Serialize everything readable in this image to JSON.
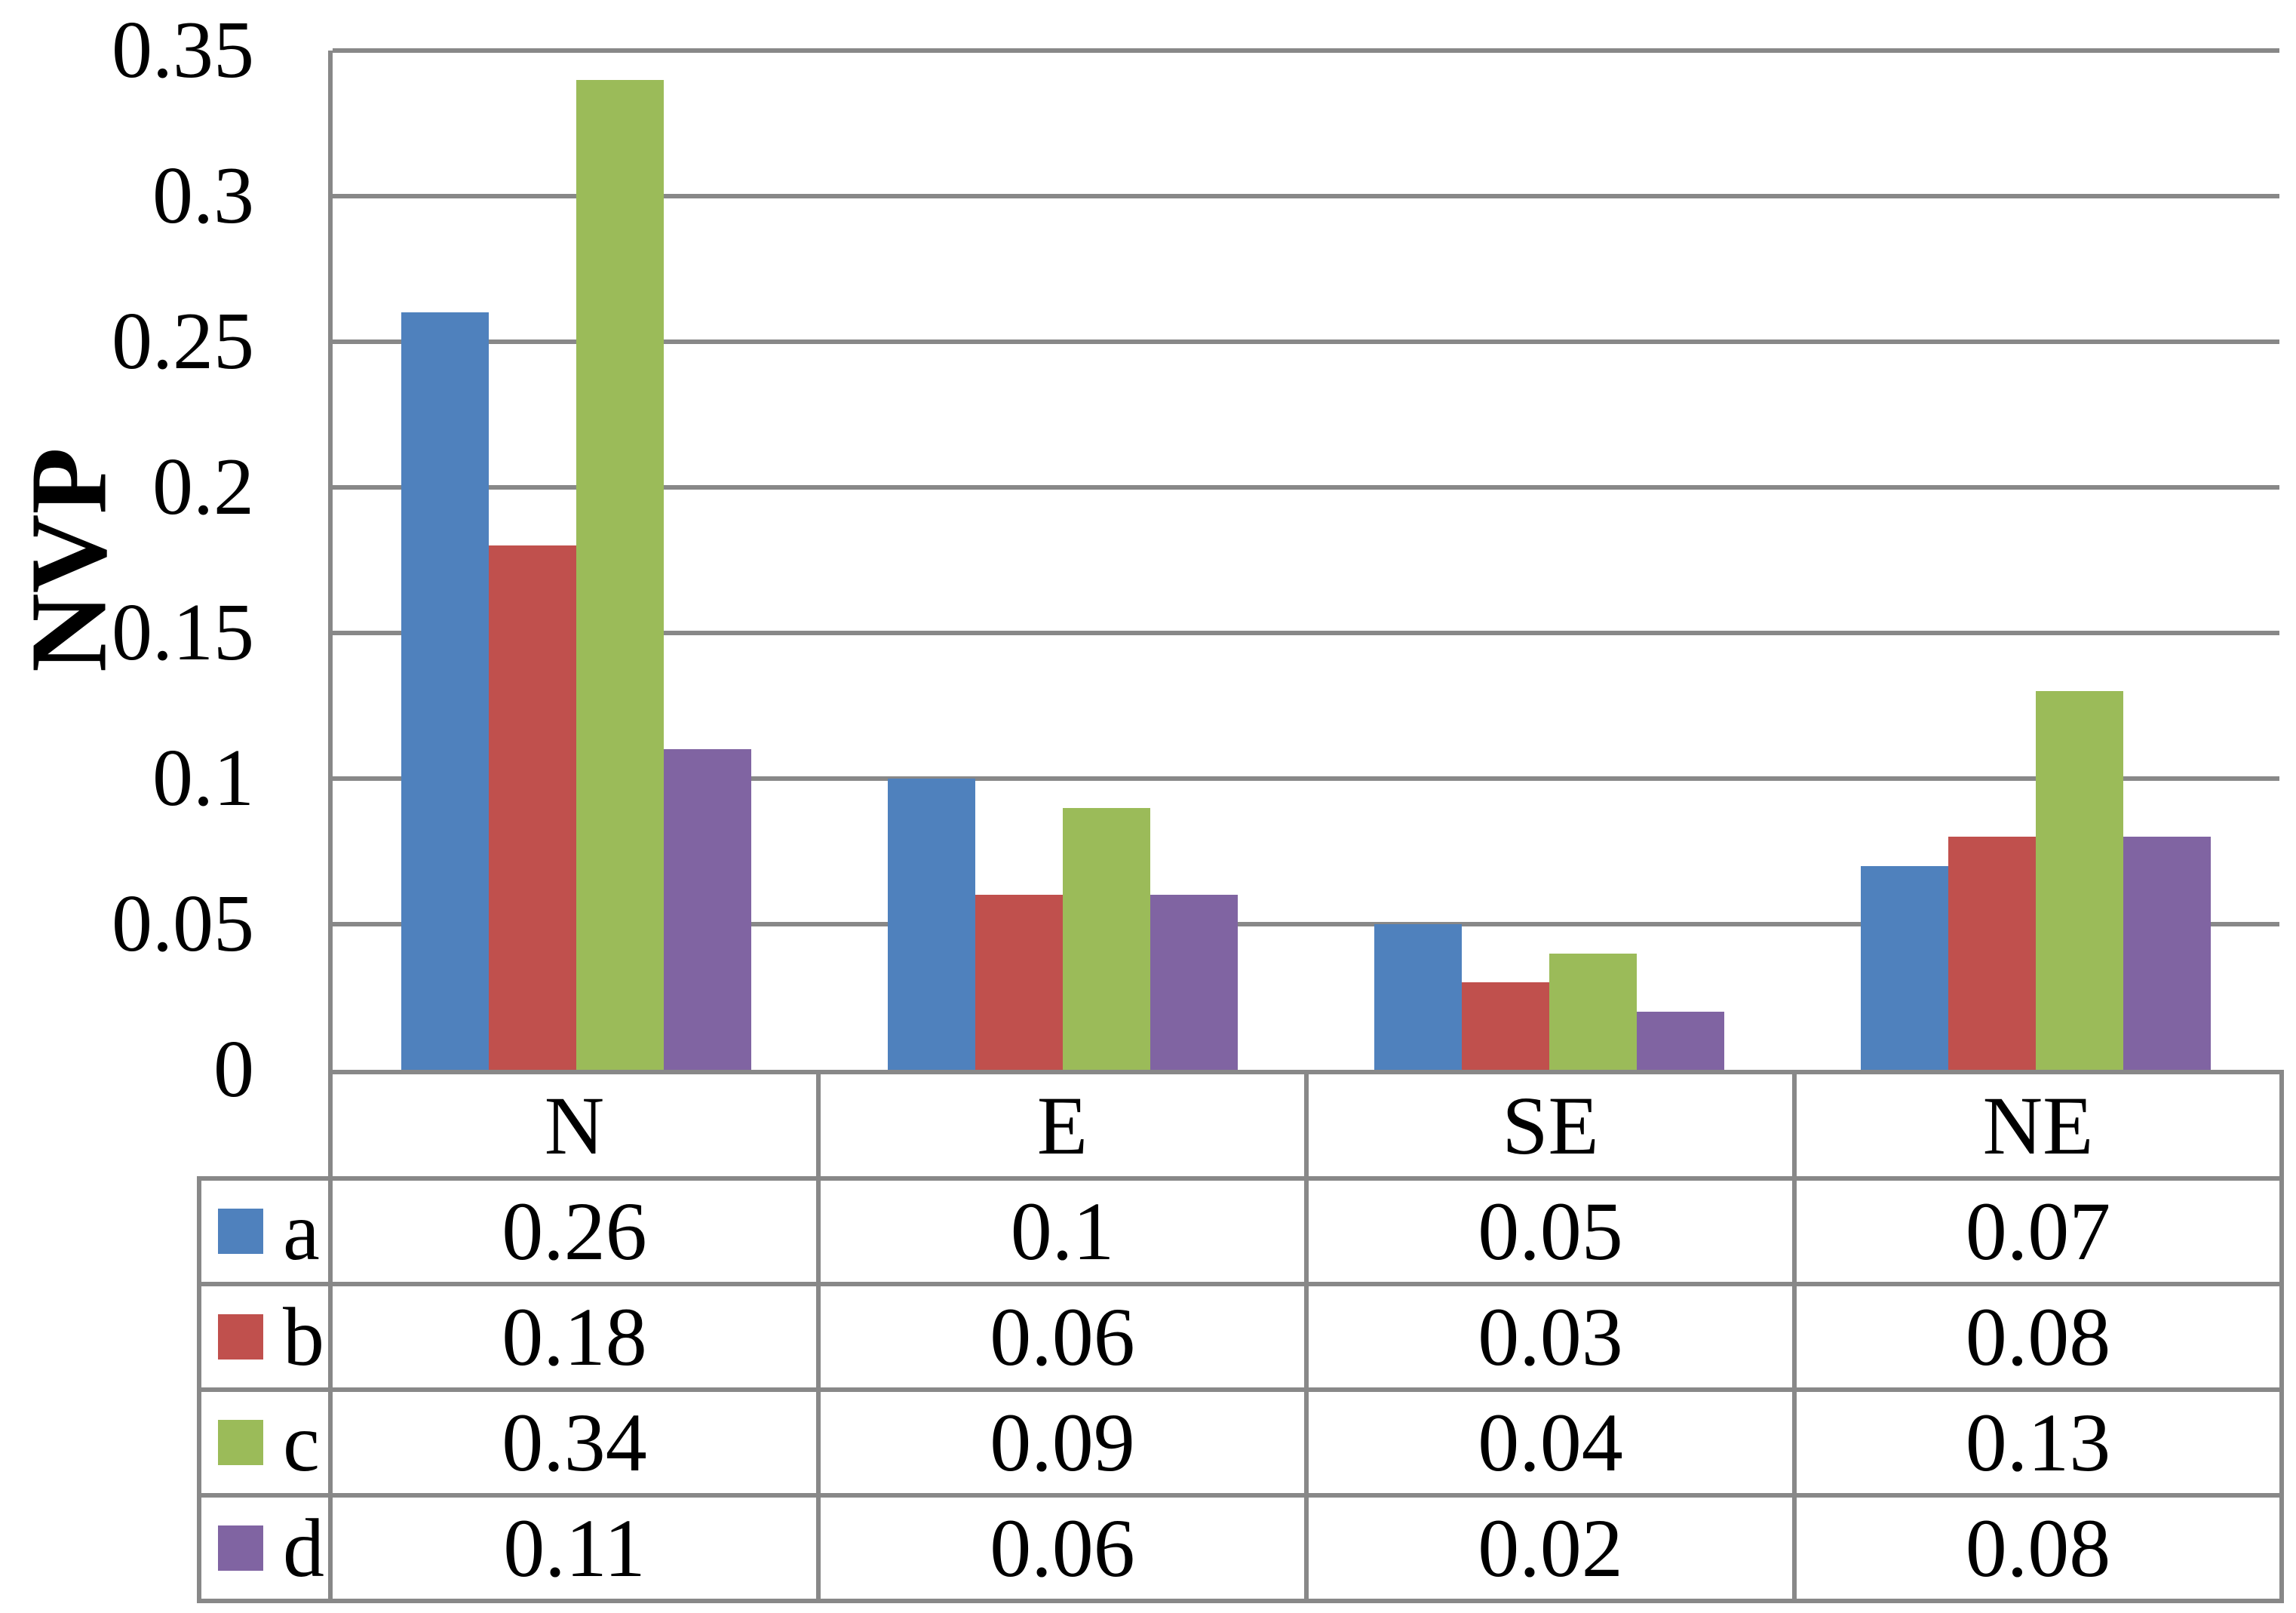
{
  "chart_data": {
    "type": "bar",
    "title": "",
    "xlabel": "",
    "ylabel": "NVP",
    "categories": [
      "N",
      "E",
      "SE",
      "NE"
    ],
    "series": [
      {
        "name": "a",
        "color": "#4F81BD",
        "values": [
          0.26,
          0.1,
          0.05,
          0.07
        ]
      },
      {
        "name": "b",
        "color": "#C0504D",
        "values": [
          0.18,
          0.06,
          0.03,
          0.08
        ]
      },
      {
        "name": "c",
        "color": "#9BBB59",
        "values": [
          0.34,
          0.09,
          0.04,
          0.13
        ]
      },
      {
        "name": "d",
        "color": "#8064A2",
        "values": [
          0.11,
          0.06,
          0.02,
          0.08
        ]
      }
    ],
    "table_values": [
      [
        "0.26",
        "0.1",
        "0.05",
        "0.07"
      ],
      [
        "0.18",
        "0.06",
        "0.03",
        "0.08"
      ],
      [
        "0.34",
        "0.09",
        "0.04",
        "0.13"
      ],
      [
        "0.11",
        "0.06",
        "0.02",
        "0.08"
      ]
    ],
    "ylim": [
      0,
      0.35
    ],
    "ytick_step": 0.05,
    "ytick_labels": [
      "0",
      "0.05",
      "0.1",
      "0.15",
      "0.2",
      "0.25",
      "0.3",
      "0.35"
    ],
    "grid": "horizontal",
    "grid_color": "#888888",
    "legend_position": "table-left"
  }
}
